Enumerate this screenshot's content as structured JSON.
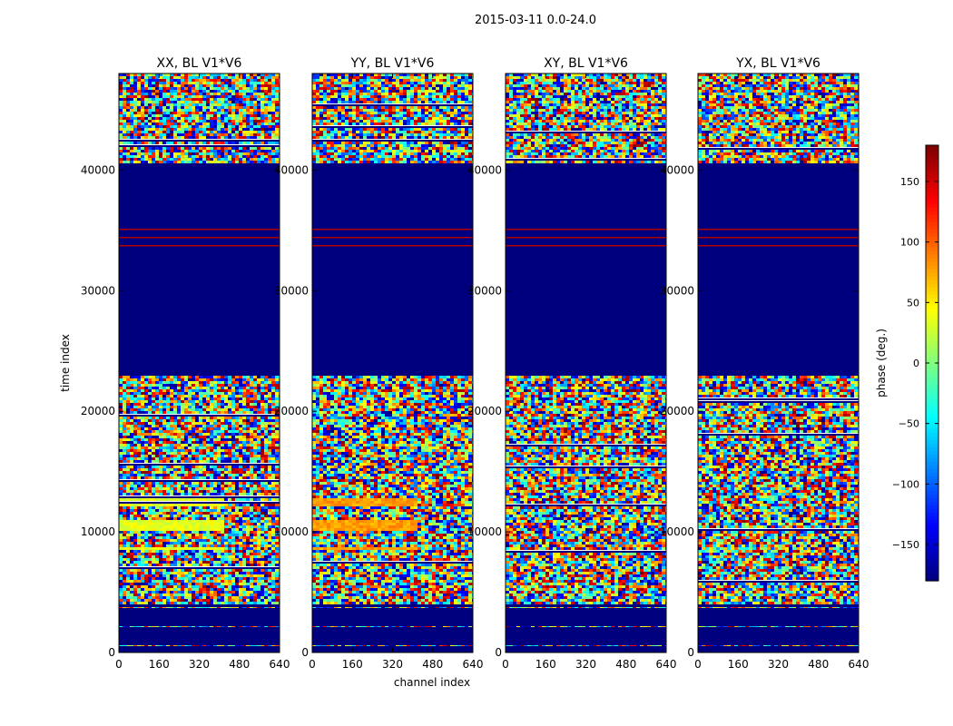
{
  "chart_data": {
    "type": "heatmap",
    "suptitle": "2015-03-11 0.0-24.0",
    "xlabel": "channel index",
    "ylabel": "time index",
    "xlim": [
      0,
      640
    ],
    "ylim": [
      0,
      48000
    ],
    "xticks": [
      0,
      160,
      320,
      480,
      640
    ],
    "yticks": [
      0,
      10000,
      20000,
      30000,
      40000
    ],
    "panels": [
      {
        "title": "XX, BL V1*V6",
        "feature": "xx"
      },
      {
        "title": "YY, BL V1*V6",
        "feature": "yy"
      },
      {
        "title": "XY, BL V1*V6",
        "feature": "xy"
      },
      {
        "title": "YX, BL V1*V6",
        "feature": "yx"
      }
    ],
    "colorbar": {
      "label": "phase (deg.)",
      "range": [
        -180,
        180
      ],
      "ticks": [
        -150,
        -100,
        -50,
        0,
        50,
        100,
        150
      ],
      "colormap": "jet"
    },
    "regions_time_index": [
      {
        "from": 0,
        "to": 4000,
        "pattern": "blue with sparse noise lines"
      },
      {
        "from": 4000,
        "to": 23000,
        "pattern": "random phase noise"
      },
      {
        "from": 23000,
        "to": 33000,
        "pattern": "flat -180 (blue)"
      },
      {
        "from": 33000,
        "to": 35500,
        "pattern": "alternating red/blue stripes"
      },
      {
        "from": 35500,
        "to": 40500,
        "pattern": "flat -180 (blue)"
      },
      {
        "from": 40500,
        "to": 48000,
        "pattern": "random phase noise"
      }
    ],
    "nan_color": "#00007f"
  }
}
